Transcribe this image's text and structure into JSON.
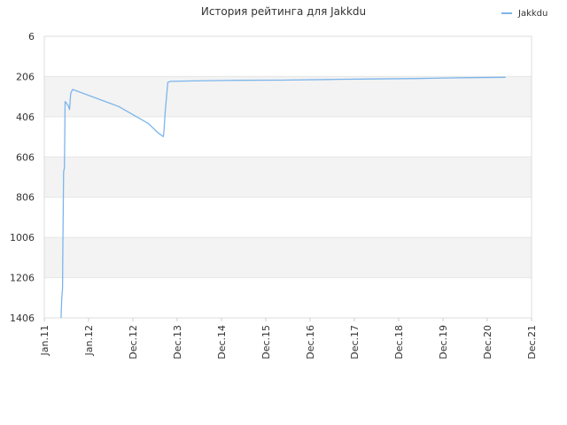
{
  "chart_data": {
    "type": "line",
    "title": "История рейтинга для Jakkdu",
    "xlabel": "",
    "ylabel": "",
    "y_inverted": true,
    "ylim": [
      6,
      1406
    ],
    "y_ticks": [
      "6",
      "206",
      "406",
      "606",
      "806",
      "1006",
      "1206",
      "1406"
    ],
    "x_ticks": [
      "Jan.11",
      "Jan.12",
      "Dec.12",
      "Dec.13",
      "Dec.14",
      "Dec.15",
      "Dec.16",
      "Dec.17",
      "Dec.18",
      "Dec.19",
      "Dec.20",
      "Dec.21"
    ],
    "x_unit": "months since Jan.11",
    "xlim": [
      0,
      131
    ],
    "grid": "horizontal",
    "banded_background": true,
    "legend_position": "top-right",
    "series": [
      {
        "name": "Jakkdu",
        "color": "#7cb5ec",
        "x": [
          4.5,
          4.7,
          4.9,
          5.0,
          5.2,
          5.4,
          5.6,
          6.4,
          6.8,
          7.1,
          7.6,
          20,
          28,
          30.5,
          32,
          32.2,
          32.5,
          32.8,
          33.2,
          34,
          40,
          52,
          64,
          76,
          88,
          100,
          112,
          124
        ],
        "y": [
          1406,
          1310,
          1260,
          1030,
          680,
          660,
          330,
          350,
          370,
          290,
          270,
          355,
          440,
          485,
          505,
          470,
          380,
          320,
          235,
          230,
          228,
          225,
          224,
          221,
          218,
          216,
          212,
          210
        ]
      }
    ]
  }
}
